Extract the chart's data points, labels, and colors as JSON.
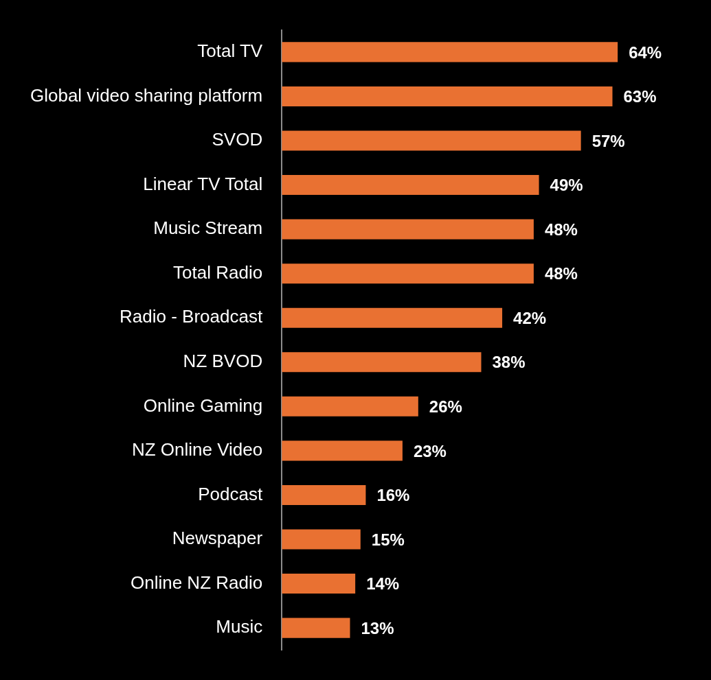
{
  "chart_data": {
    "type": "bar",
    "orientation": "horizontal",
    "categories": [
      "Total TV",
      "Global video sharing platform",
      "SVOD",
      "Linear TV Total",
      "Music Stream",
      "Total Radio",
      "Radio - Broadcast",
      "NZ BVOD",
      "Online Gaming",
      "NZ Online Video",
      "Podcast",
      "Newspaper",
      "Online NZ Radio",
      "Music"
    ],
    "values": [
      64,
      63,
      57,
      49,
      48,
      48,
      42,
      38,
      26,
      23,
      16,
      15,
      14,
      13
    ],
    "value_labels": [
      "64%",
      "63%",
      "57%",
      "49%",
      "48%",
      "48%",
      "42%",
      "38%",
      "26%",
      "23%",
      "16%",
      "15%",
      "14%",
      "13%"
    ],
    "color": "#e97132",
    "tick_labels": "y",
    "legend": false
  }
}
